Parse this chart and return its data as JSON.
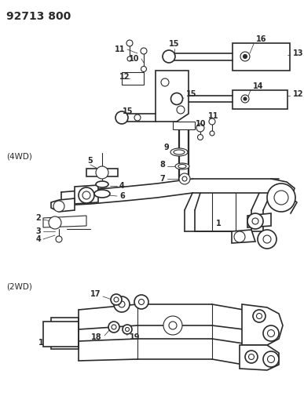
{
  "title": "92713 800",
  "background_color": "#ffffff",
  "line_color": "#2a2a2a",
  "label_4wd": "(4WD)",
  "label_2wd": "(2WD)",
  "fig_width": 3.87,
  "fig_height": 5.33,
  "dpi": 100
}
